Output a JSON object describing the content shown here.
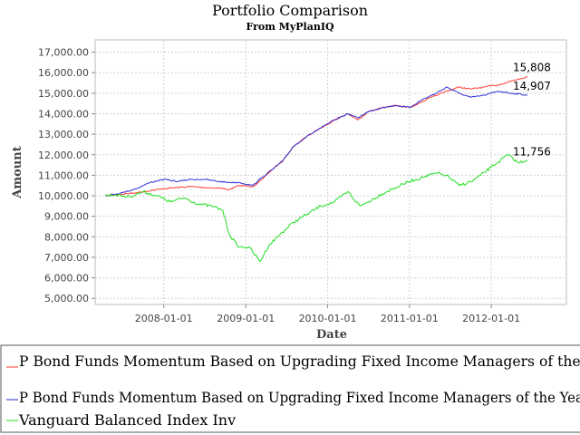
{
  "chart_data": {
    "type": "line",
    "title": "Portfolio Comparison",
    "subtitle": "From MyPlanIQ",
    "xlabel": "Date",
    "ylabel": "Amount",
    "ylim": [
      4700,
      17600
    ],
    "yticks": [
      5000,
      6000,
      7000,
      8000,
      9000,
      10000,
      11000,
      12000,
      13000,
      14000,
      15000,
      16000,
      17000
    ],
    "ytick_labels": [
      "5,000.00",
      "6,000.00",
      "7,000.00",
      "8,000.00",
      "9,000.00",
      "10,000.00",
      "11,000.00",
      "12,000.00",
      "13,000.00",
      "14,000.00",
      "15,000.00",
      "16,000.00",
      "17,000.00"
    ],
    "xlim": [
      "2007-03-01",
      "2012-12-01"
    ],
    "xticks": [
      "2008-01-01",
      "2009-01-01",
      "2010-01-01",
      "2011-01-01",
      "2012-01-01"
    ],
    "grid": true,
    "legend_position": "bottom",
    "series": [
      {
        "name": "P Bond Funds Momentum Based on Upgrading Fixed Income Managers of the Year Monthly",
        "color": "#ff3b30",
        "end_label": "15,808",
        "x": [
          "2007-04-15",
          "2007-07-01",
          "2007-09-01",
          "2007-11-01",
          "2008-01-01",
          "2008-03-01",
          "2008-05-01",
          "2008-07-01",
          "2008-09-01",
          "2008-10-20",
          "2008-12-01",
          "2009-02-01",
          "2009-03-15",
          "2009-05-01",
          "2009-06-15",
          "2009-08-01",
          "2009-10-01",
          "2009-12-01",
          "2010-02-01",
          "2010-04-01",
          "2010-05-15",
          "2010-07-01",
          "2010-09-01",
          "2010-11-01",
          "2011-01-01",
          "2011-03-01",
          "2011-05-01",
          "2011-06-15",
          "2011-08-10",
          "2011-10-01",
          "2011-12-01",
          "2012-02-01",
          "2012-04-01",
          "2012-06-10"
        ],
        "y": [
          10000,
          10080,
          10150,
          10250,
          10350,
          10400,
          10450,
          10400,
          10380,
          10300,
          10500,
          10450,
          10800,
          11300,
          11700,
          12400,
          12900,
          13300,
          13700,
          14000,
          13700,
          14100,
          14300,
          14400,
          14300,
          14600,
          14900,
          15100,
          15300,
          15200,
          15300,
          15400,
          15600,
          15808
        ]
      },
      {
        "name": "P Bond Funds Momentum Based on Upgrading Fixed Income Managers of the Year",
        "color": "#2b2bd6",
        "end_label": "14,907",
        "x": [
          "2007-04-15",
          "2007-07-01",
          "2007-09-01",
          "2007-11-01",
          "2008-01-01",
          "2008-03-01",
          "2008-05-01",
          "2008-07-01",
          "2008-09-01",
          "2008-10-20",
          "2008-12-01",
          "2009-02-01",
          "2009-03-15",
          "2009-05-01",
          "2009-06-15",
          "2009-08-01",
          "2009-10-01",
          "2009-12-01",
          "2010-02-01",
          "2010-04-01",
          "2010-05-15",
          "2010-07-01",
          "2010-09-01",
          "2010-11-01",
          "2011-01-01",
          "2011-03-01",
          "2011-05-01",
          "2011-06-15",
          "2011-08-10",
          "2011-10-01",
          "2011-12-01",
          "2012-02-01",
          "2012-04-01",
          "2012-06-10"
        ],
        "y": [
          10000,
          10150,
          10350,
          10650,
          10800,
          10700,
          10800,
          10800,
          10700,
          10650,
          10650,
          10500,
          10900,
          11300,
          11700,
          12400,
          12900,
          13300,
          13700,
          14000,
          13800,
          14100,
          14300,
          14400,
          14300,
          14700,
          15000,
          15300,
          15000,
          14800,
          14900,
          15100,
          15000,
          14907
        ]
      },
      {
        "name": "Vanguard Balanced Index Inv",
        "color": "#22dd22",
        "end_label": "11,756",
        "x": [
          "2007-04-15",
          "2007-06-01",
          "2007-08-01",
          "2007-10-01",
          "2007-12-01",
          "2008-02-01",
          "2008-04-01",
          "2008-06-01",
          "2008-08-01",
          "2008-09-20",
          "2008-10-20",
          "2008-12-01",
          "2009-01-15",
          "2009-03-05",
          "2009-04-15",
          "2009-06-01",
          "2009-08-01",
          "2009-10-01",
          "2009-12-01",
          "2010-02-01",
          "2010-04-01",
          "2010-05-25",
          "2010-07-01",
          "2010-09-01",
          "2010-11-01",
          "2011-01-01",
          "2011-03-01",
          "2011-05-01",
          "2011-06-15",
          "2011-08-10",
          "2011-10-05",
          "2011-11-15",
          "2012-01-01",
          "2012-03-15",
          "2012-05-01",
          "2012-06-10"
        ],
        "y": [
          10000,
          10050,
          9950,
          10200,
          10000,
          9700,
          9900,
          9600,
          9500,
          9300,
          8100,
          7500,
          7500,
          6800,
          7600,
          8100,
          8700,
          9100,
          9500,
          9700,
          10200,
          9500,
          9700,
          10100,
          10400,
          10700,
          10900,
          11100,
          11000,
          10500,
          10700,
          11000,
          11400,
          12000,
          11600,
          11756
        ]
      }
    ]
  }
}
